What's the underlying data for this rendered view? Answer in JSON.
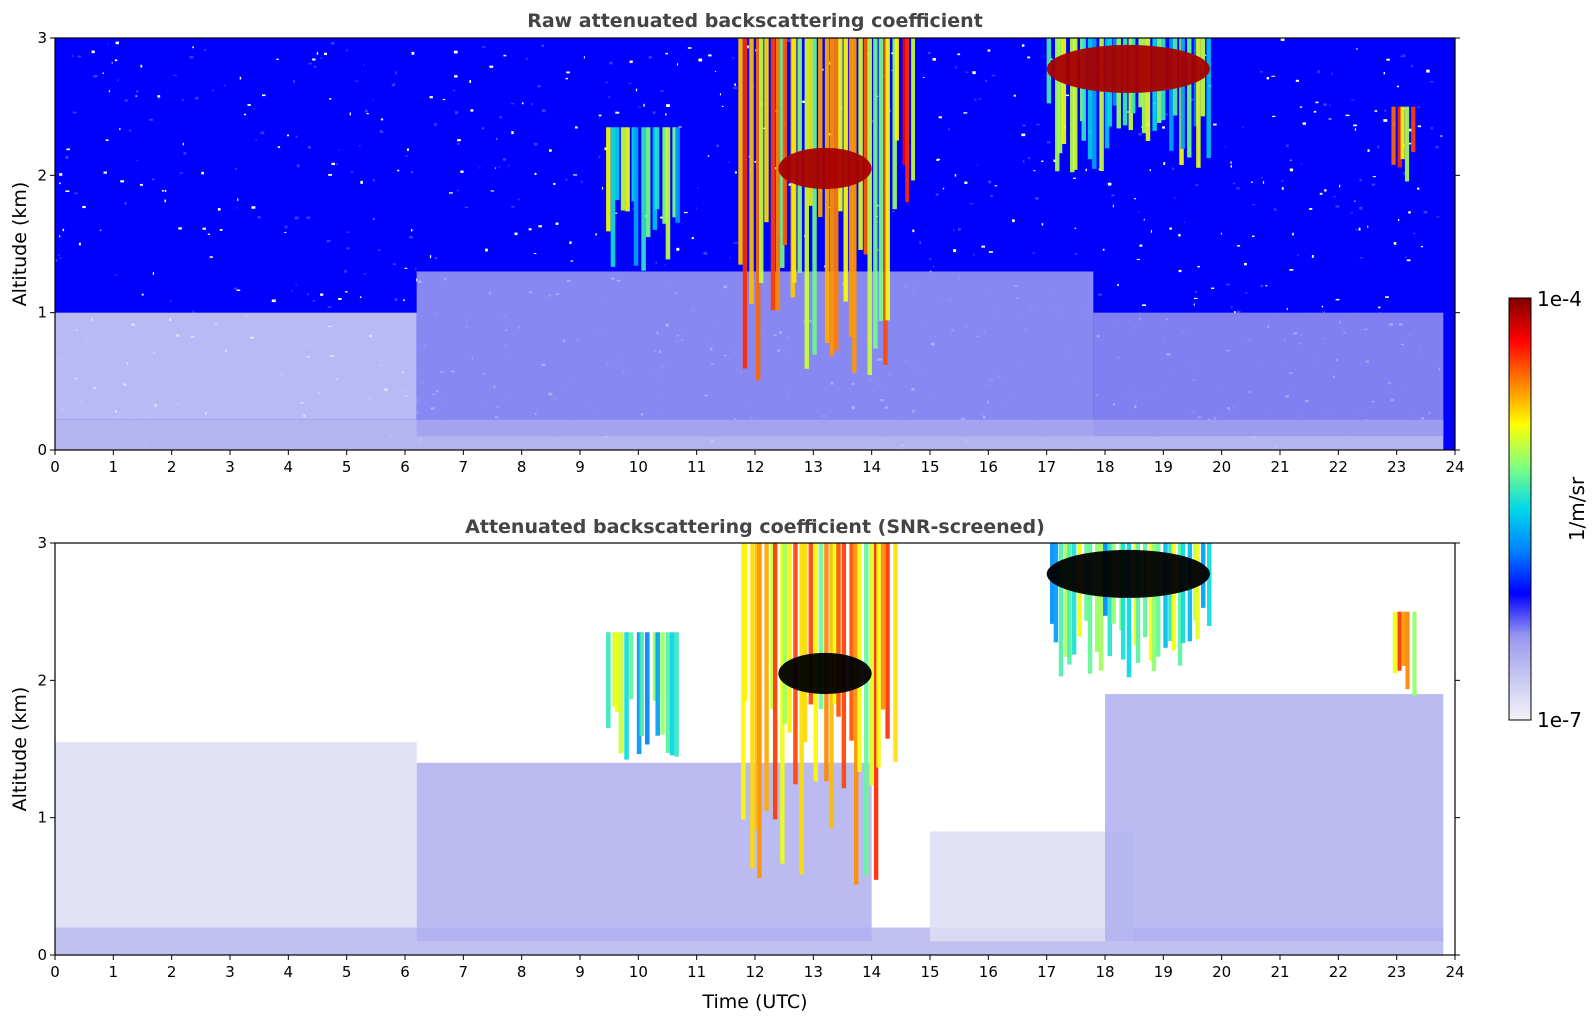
{
  "chart_data": [
    {
      "type": "heatmap",
      "title": "Raw attenuated backscattering coefficient",
      "xlabel": "",
      "ylabel": "Altitude (km)",
      "xlim": [
        0,
        24
      ],
      "ylim": [
        0,
        3
      ],
      "x_ticks": [
        "0",
        "1",
        "2",
        "3",
        "4",
        "5",
        "6",
        "7",
        "8",
        "9",
        "10",
        "11",
        "12",
        "13",
        "14",
        "15",
        "16",
        "17",
        "18",
        "19",
        "20",
        "21",
        "22",
        "23",
        "24"
      ],
      "y_ticks": [
        "0",
        "1",
        "2",
        "3"
      ],
      "screened": false,
      "features": [
        {
          "kind": "surface_layer",
          "x": [
            0,
            23.8
          ],
          "y": [
            0,
            0.22
          ],
          "level": 0.12
        },
        {
          "kind": "boundary_layer",
          "x": [
            0,
            6.2
          ],
          "y": [
            0.22,
            1.0
          ],
          "level": 0.06
        },
        {
          "kind": "boundary_layer",
          "x": [
            6.2,
            17.8
          ],
          "y": [
            0.1,
            1.3
          ],
          "level": 0.18
        },
        {
          "kind": "boundary_layer",
          "x": [
            17.8,
            23.8
          ],
          "y": [
            0.1,
            1.0
          ],
          "level": 0.2
        },
        {
          "kind": "cloud",
          "x": [
            9.4,
            10.7
          ],
          "y": [
            1.3,
            2.35
          ],
          "level": 0.55
        },
        {
          "kind": "cloud",
          "x": [
            11.7,
            14.4
          ],
          "y": [
            0.5,
            3.0
          ],
          "level": 0.72
        },
        {
          "kind": "cloud_base",
          "x": [
            12.4,
            14.0
          ],
          "y": [
            1.9,
            2.2
          ],
          "level": 0.97
        },
        {
          "kind": "cloud",
          "x": [
            14.4,
            14.7
          ],
          "y": [
            1.6,
            3.0
          ],
          "level": 0.8
        },
        {
          "kind": "cloud",
          "x": [
            17.0,
            19.8
          ],
          "y": [
            2.0,
            3.0
          ],
          "level": 0.55
        },
        {
          "kind": "cloud_top",
          "x": [
            17.0,
            19.8
          ],
          "y": [
            2.6,
            2.95
          ],
          "level": 0.97
        },
        {
          "kind": "cloud",
          "x": [
            22.9,
            23.3
          ],
          "y": [
            1.8,
            2.5
          ],
          "level": 0.75
        }
      ]
    },
    {
      "type": "heatmap",
      "title": "Attenuated backscattering coefficient (SNR-screened)",
      "xlabel": "Time (UTC)",
      "ylabel": "Altitude (km)",
      "xlim": [
        0,
        24
      ],
      "ylim": [
        0,
        3
      ],
      "x_ticks": [
        "0",
        "1",
        "2",
        "3",
        "4",
        "5",
        "6",
        "7",
        "8",
        "9",
        "10",
        "11",
        "12",
        "13",
        "14",
        "15",
        "16",
        "17",
        "18",
        "19",
        "20",
        "21",
        "22",
        "23",
        "24"
      ],
      "y_ticks": [
        "0",
        "1",
        "2",
        "3"
      ],
      "screened": true,
      "features": [
        {
          "kind": "surface_layer",
          "x": [
            0,
            23.8
          ],
          "y": [
            0,
            0.2
          ],
          "level": 0.12
        },
        {
          "kind": "boundary_layer",
          "x": [
            0,
            6.2
          ],
          "y": [
            0.2,
            1.55
          ],
          "level": 0.05
        },
        {
          "kind": "boundary_layer",
          "x": [
            6.2,
            14.0
          ],
          "y": [
            0.1,
            1.4
          ],
          "level": 0.15
        },
        {
          "kind": "boundary_layer",
          "x": [
            15.0,
            18.5
          ],
          "y": [
            0.1,
            0.9
          ],
          "level": 0.05
        },
        {
          "kind": "boundary_layer",
          "x": [
            18.0,
            23.8
          ],
          "y": [
            0.1,
            1.9
          ],
          "level": 0.15
        },
        {
          "kind": "cloud",
          "x": [
            9.4,
            10.7
          ],
          "y": [
            1.3,
            2.35
          ],
          "level": 0.55
        },
        {
          "kind": "cloud",
          "x": [
            11.7,
            14.4
          ],
          "y": [
            0.5,
            3.0
          ],
          "level": 0.72
        },
        {
          "kind": "cloud_base",
          "x": [
            12.4,
            14.0
          ],
          "y": [
            1.9,
            2.2
          ],
          "level": 1.0
        },
        {
          "kind": "cloud",
          "x": [
            17.0,
            19.8
          ],
          "y": [
            2.0,
            3.0
          ],
          "level": 0.55
        },
        {
          "kind": "cloud_top",
          "x": [
            17.0,
            19.8
          ],
          "y": [
            2.6,
            2.95
          ],
          "level": 1.0
        },
        {
          "kind": "cloud",
          "x": [
            22.9,
            23.3
          ],
          "y": [
            1.8,
            2.5
          ],
          "level": 0.75
        }
      ]
    }
  ],
  "colorbar": {
    "label": "1/m/sr",
    "max_label": "1e-4",
    "min_label": "1e-7",
    "range": [
      1e-07,
      0.0001
    ],
    "scale": "log",
    "colormap": "jet",
    "colors": [
      "#f2f2f8",
      "#c8c8f0",
      "#9696f0",
      "#0000ff",
      "#0080ff",
      "#00d8e8",
      "#80ff80",
      "#ffff00",
      "#ff8000",
      "#ff0000",
      "#800000"
    ]
  }
}
